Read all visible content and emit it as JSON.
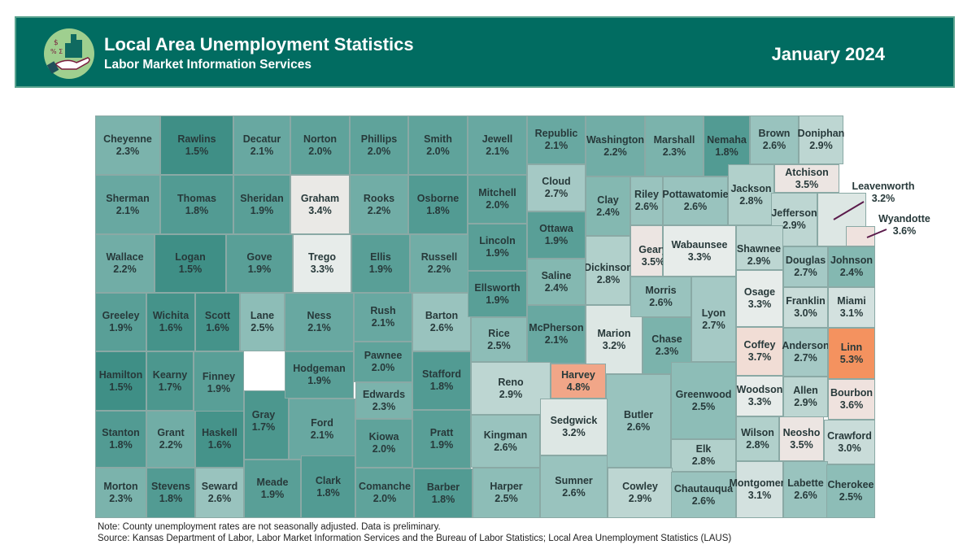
{
  "header": {
    "title": "Local Area Unemployment Statistics",
    "subtitle": "Labor Market Information Services",
    "date": "January 2024",
    "logo_icon": "hand-holding-chart-icon",
    "background_color": "#016c61"
  },
  "color_scale": {
    "low": "#3f8f86",
    "mid": "#c6dbd8",
    "neutral": "#ebebea",
    "high": "#f4925f"
  },
  "counties": [
    {
      "name": "Cheyenne",
      "rate": "2.3%"
    },
    {
      "name": "Rawlins",
      "rate": "1.5%"
    },
    {
      "name": "Decatur",
      "rate": "2.1%"
    },
    {
      "name": "Norton",
      "rate": "2.0%"
    },
    {
      "name": "Phillips",
      "rate": "2.0%"
    },
    {
      "name": "Smith",
      "rate": "2.0%"
    },
    {
      "name": "Jewell",
      "rate": "2.1%"
    },
    {
      "name": "Republic",
      "rate": "2.1%"
    },
    {
      "name": "Washington",
      "rate": "2.2%"
    },
    {
      "name": "Marshall",
      "rate": "2.3%"
    },
    {
      "name": "Nemaha",
      "rate": "1.8%"
    },
    {
      "name": "Brown",
      "rate": "2.6%"
    },
    {
      "name": "Doniphan",
      "rate": "2.9%"
    },
    {
      "name": "Sherman",
      "rate": "2.1%"
    },
    {
      "name": "Thomas",
      "rate": "1.8%"
    },
    {
      "name": "Sheridan",
      "rate": "1.9%"
    },
    {
      "name": "Graham",
      "rate": "3.4%"
    },
    {
      "name": "Rooks",
      "rate": "2.2%"
    },
    {
      "name": "Osborne",
      "rate": "1.8%"
    },
    {
      "name": "Mitchell",
      "rate": "2.0%"
    },
    {
      "name": "Cloud",
      "rate": "2.7%"
    },
    {
      "name": "Clay",
      "rate": "2.4%"
    },
    {
      "name": "Riley",
      "rate": "2.6%"
    },
    {
      "name": "Pottawatomie",
      "rate": "2.6%"
    },
    {
      "name": "Jackson",
      "rate": "2.8%"
    },
    {
      "name": "Atchison",
      "rate": "3.5%"
    },
    {
      "name": "Jefferson",
      "rate": "2.9%"
    },
    {
      "name": "Leavenworth",
      "rate": "3.2%"
    },
    {
      "name": "Wyandotte",
      "rate": "3.6%"
    },
    {
      "name": "Wallace",
      "rate": "2.2%"
    },
    {
      "name": "Logan",
      "rate": "1.5%"
    },
    {
      "name": "Gove",
      "rate": "1.9%"
    },
    {
      "name": "Trego",
      "rate": "3.3%"
    },
    {
      "name": "Ellis",
      "rate": "1.9%"
    },
    {
      "name": "Russell",
      "rate": "2.2%"
    },
    {
      "name": "Lincoln",
      "rate": "1.9%"
    },
    {
      "name": "Ottawa",
      "rate": "1.9%"
    },
    {
      "name": "Dickinson",
      "rate": "2.8%"
    },
    {
      "name": "Geary",
      "rate": "3.5%"
    },
    {
      "name": "Wabaunsee",
      "rate": "3.3%"
    },
    {
      "name": "Shawnee",
      "rate": "2.9%"
    },
    {
      "name": "Douglas",
      "rate": "2.7%"
    },
    {
      "name": "Johnson",
      "rate": "2.4%"
    },
    {
      "name": "Greeley",
      "rate": "1.9%"
    },
    {
      "name": "Wichita",
      "rate": "1.6%"
    },
    {
      "name": "Scott",
      "rate": "1.6%"
    },
    {
      "name": "Lane",
      "rate": "2.5%"
    },
    {
      "name": "Ness",
      "rate": "2.1%"
    },
    {
      "name": "Rush",
      "rate": "2.1%"
    },
    {
      "name": "Barton",
      "rate": "2.6%"
    },
    {
      "name": "Ellsworth",
      "rate": "1.9%"
    },
    {
      "name": "Saline",
      "rate": "2.4%"
    },
    {
      "name": "McPherson",
      "rate": "2.1%"
    },
    {
      "name": "Rice",
      "rate": "2.5%"
    },
    {
      "name": "Marion",
      "rate": "3.2%"
    },
    {
      "name": "Morris",
      "rate": "2.6%"
    },
    {
      "name": "Chase",
      "rate": "2.3%"
    },
    {
      "name": "Lyon",
      "rate": "2.7%"
    },
    {
      "name": "Osage",
      "rate": "3.3%"
    },
    {
      "name": "Franklin",
      "rate": "3.0%"
    },
    {
      "name": "Miami",
      "rate": "3.1%"
    },
    {
      "name": "Hamilton",
      "rate": "1.5%"
    },
    {
      "name": "Kearny",
      "rate": "1.7%"
    },
    {
      "name": "Finney",
      "rate": "1.9%"
    },
    {
      "name": "Gray",
      "rate": "1.7%"
    },
    {
      "name": "Hodgeman",
      "rate": "1.9%"
    },
    {
      "name": "Pawnee",
      "rate": "2.0%"
    },
    {
      "name": "Edwards",
      "rate": "2.3%"
    },
    {
      "name": "Stafford",
      "rate": "1.8%"
    },
    {
      "name": "Reno",
      "rate": "2.9%"
    },
    {
      "name": "Harvey",
      "rate": "4.8%"
    },
    {
      "name": "Butler",
      "rate": "2.6%"
    },
    {
      "name": "Greenwood",
      "rate": "2.5%"
    },
    {
      "name": "Coffey",
      "rate": "3.7%"
    },
    {
      "name": "Anderson",
      "rate": "2.7%"
    },
    {
      "name": "Linn",
      "rate": "5.3%"
    },
    {
      "name": "Stanton",
      "rate": "1.8%"
    },
    {
      "name": "Grant",
      "rate": "2.2%"
    },
    {
      "name": "Haskell",
      "rate": "1.6%"
    },
    {
      "name": "Ford",
      "rate": "2.1%"
    },
    {
      "name": "Kiowa",
      "rate": "2.0%"
    },
    {
      "name": "Pratt",
      "rate": "1.9%"
    },
    {
      "name": "Kingman",
      "rate": "2.6%"
    },
    {
      "name": "Sedgwick",
      "rate": "3.2%"
    },
    {
      "name": "Woodson",
      "rate": "3.3%"
    },
    {
      "name": "Allen",
      "rate": "2.9%"
    },
    {
      "name": "Bourbon",
      "rate": "3.6%"
    },
    {
      "name": "Elk",
      "rate": "2.8%"
    },
    {
      "name": "Wilson",
      "rate": "2.8%"
    },
    {
      "name": "Neosho",
      "rate": "3.5%"
    },
    {
      "name": "Crawford",
      "rate": "3.0%"
    },
    {
      "name": "Morton",
      "rate": "2.3%"
    },
    {
      "name": "Stevens",
      "rate": "1.8%"
    },
    {
      "name": "Seward",
      "rate": "2.6%"
    },
    {
      "name": "Meade",
      "rate": "1.9%"
    },
    {
      "name": "Clark",
      "rate": "1.8%"
    },
    {
      "name": "Comanche",
      "rate": "2.0%"
    },
    {
      "name": "Barber",
      "rate": "1.8%"
    },
    {
      "name": "Harper",
      "rate": "2.5%"
    },
    {
      "name": "Sumner",
      "rate": "2.6%"
    },
    {
      "name": "Cowley",
      "rate": "2.9%"
    },
    {
      "name": "Chautauqua",
      "rate": "2.6%"
    },
    {
      "name": "Montgomery",
      "rate": "3.1%"
    },
    {
      "name": "Labette",
      "rate": "2.6%"
    },
    {
      "name": "Cherokee",
      "rate": "2.5%"
    }
  ],
  "footer": {
    "note": "Note: County unemployment rates are not seasonally adjusted. Data is preliminary.",
    "source": "Source: Kansas Department of Labor, Labor Market Information Services and the Bureau of Labor Statistics; Local Area Unemployment Statistics (LAUS)"
  }
}
